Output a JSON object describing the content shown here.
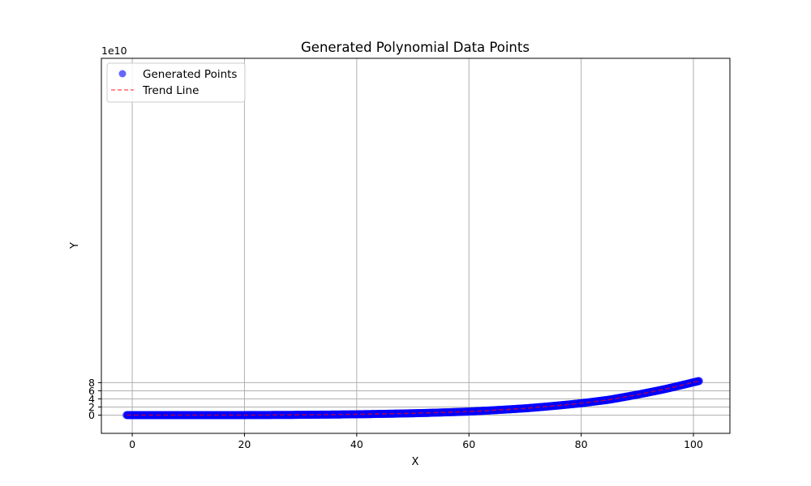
{
  "chart_data": {
    "type": "scatter",
    "title": "Generated Polynomial Data Points",
    "xlabel": "X",
    "ylabel": "Y",
    "y_offset_label": "1e10",
    "y_scale": 10000000000,
    "xlim": [
      -5.5,
      106.5
    ],
    "ylim": [
      -4.5,
      88
    ],
    "xticks": [
      0,
      20,
      40,
      60,
      80,
      100
    ],
    "xtick_labels": [
      "0",
      "20",
      "40",
      "60",
      "80",
      "100"
    ],
    "yticks": [
      0,
      2,
      4,
      6,
      8
    ],
    "ytick_labels": [
      "0",
      "2",
      "4",
      "6",
      "8"
    ],
    "grid": true,
    "legend_position": "upper-left",
    "series": [
      {
        "name": "Generated Points",
        "kind": "scatter",
        "color": "#0000ff",
        "alpha": 0.6,
        "x_range": [
          -1,
          101
        ],
        "trend": "quartic",
        "points": [
          [
            -1,
            0.0
          ],
          [
            0,
            0.0
          ],
          [
            10,
            0.0
          ],
          [
            20,
            0.0
          ],
          [
            30,
            0.07
          ],
          [
            40,
            0.2
          ],
          [
            50,
            0.4
          ],
          [
            60,
            0.7
          ],
          [
            70,
            1.4
          ],
          [
            75,
            1.95
          ],
          [
            80,
            2.55
          ],
          [
            85,
            3.4
          ],
          [
            90,
            4.8
          ],
          [
            95,
            6.3
          ],
          [
            100,
            8.1
          ],
          [
            101,
            8.4
          ]
        ]
      },
      {
        "name": "Trend Line",
        "kind": "line",
        "style": "dashed",
        "color": "#ff0000",
        "alpha": 0.6,
        "x_range": [
          -1,
          101
        ]
      }
    ]
  }
}
